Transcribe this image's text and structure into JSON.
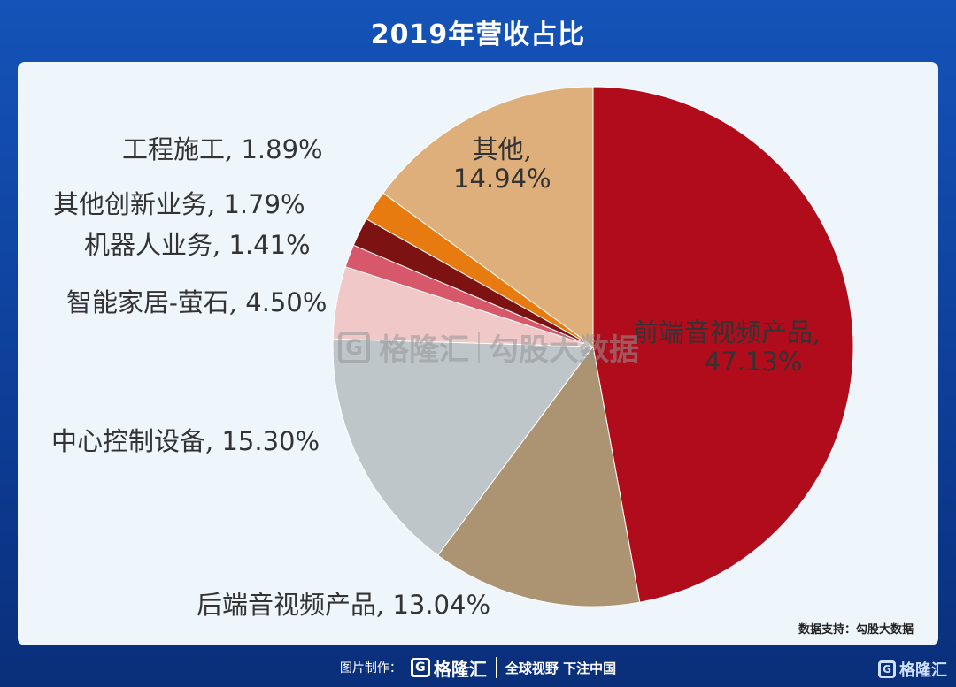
{
  "header": {
    "title": "2019年营收占比"
  },
  "chart_data": {
    "type": "pie",
    "title": "2019年营收占比",
    "slices": [
      {
        "label": "前端音视频产品",
        "value": 47.13,
        "display": "47.13%",
        "color": "#b10c1c"
      },
      {
        "label": "后端音视频产品",
        "value": 13.04,
        "display": "13.04%",
        "color": "#ac9472"
      },
      {
        "label": "中心控制设备",
        "value": 15.3,
        "display": "15.30%",
        "color": "#bfc6c9"
      },
      {
        "label": "智能家居-萤石",
        "value": 4.5,
        "display": "4.50%",
        "color": "#f0c8c8"
      },
      {
        "label": "机器人业务",
        "value": 1.41,
        "display": "1.41%",
        "color": "#d8586b"
      },
      {
        "label": "其他创新业务",
        "value": 1.79,
        "display": "1.79%",
        "color": "#7d1212"
      },
      {
        "label": "工程施工",
        "value": 1.89,
        "display": "1.89%",
        "color": "#e77b10"
      },
      {
        "label": "其他",
        "value": 14.94,
        "display": "14.94%",
        "color": "#dfaf7b"
      }
    ]
  },
  "source": {
    "text": "数据支持：勾股大数据"
  },
  "watermark": {
    "brand": "格隆汇",
    "text": "勾股大数据",
    "icon": "g-logo-icon"
  },
  "footer": {
    "made_by": "图片制作：",
    "brand": "格隆汇",
    "slogan": "全球视野 下注中国"
  },
  "corner_logo": {
    "brand": "格隆汇"
  }
}
